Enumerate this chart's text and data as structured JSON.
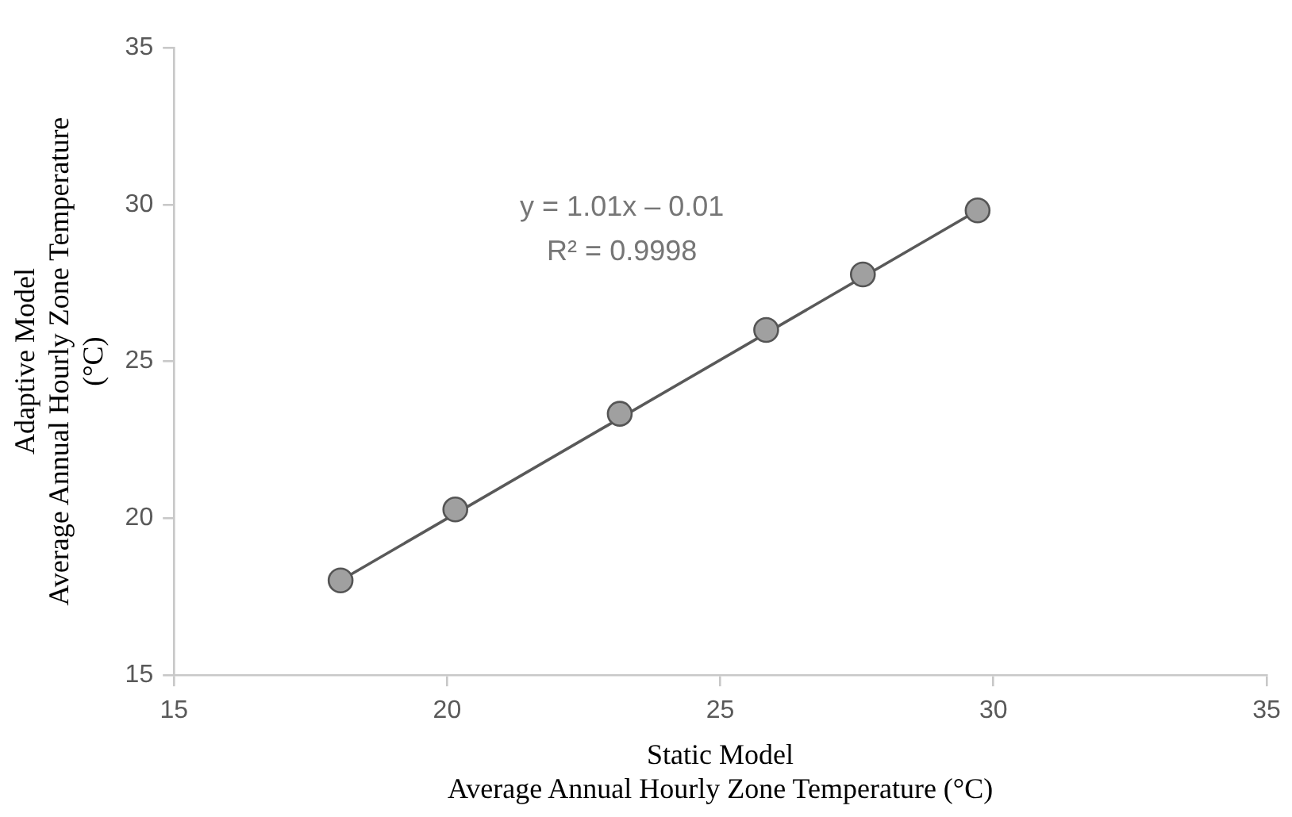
{
  "chart_data": {
    "type": "scatter",
    "xlabel": "Static Model\nAverage Annual Hourly Zone Temperature (°C)",
    "ylabel": "Adaptive Model\nAverage Annual Hourly Zone Temperature\n(°C)",
    "series": [
      {
        "color": "#a0a0a0",
        "x": [
          18.05,
          20.15,
          23.16,
          25.84,
          27.61,
          29.71
        ],
        "values": [
          18.02,
          20.28,
          23.33,
          26.0,
          27.77,
          29.81
        ]
      },
      {
        "type": "line",
        "color": "#595959",
        "x": [
          18.05,
          29.71
        ],
        "values": [
          18.02,
          29.81
        ],
        "marker": "none"
      }
    ],
    "annotations": [
      "y = 1.01x – 0.01\nR² = 0.9998"
    ],
    "xlim": [
      15,
      35
    ],
    "xticks": [
      15,
      20,
      25,
      30,
      35
    ],
    "ylim": [
      15,
      35
    ],
    "yticks": [
      15,
      20,
      25,
      30,
      35
    ],
    "grid": false,
    "legend": false,
    "marker": "circle"
  }
}
